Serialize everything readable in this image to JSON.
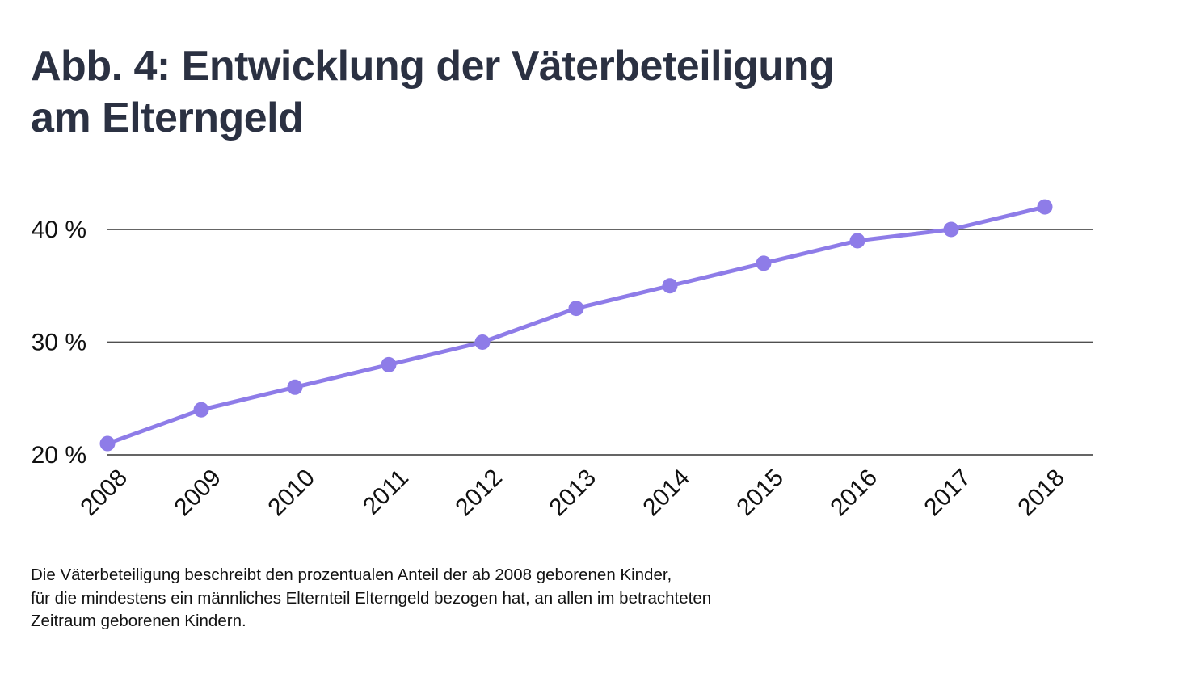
{
  "header": {
    "title_line1": "Abb. 4: Entwicklung der Väterbeteiligung",
    "title_line2": "am Elterngeld",
    "title_color": "#2b3142"
  },
  "chart_data": {
    "type": "line",
    "title": "Abb. 4: Entwicklung der Väterbeteiligung am Elterngeld",
    "x": [
      "2008",
      "2009",
      "2010",
      "2011",
      "2012",
      "2013",
      "2014",
      "2015",
      "2016",
      "2017",
      "2018"
    ],
    "values": [
      21,
      24,
      26,
      28,
      30,
      33,
      35,
      37,
      39,
      40,
      42
    ],
    "unit": "%",
    "ylim": [
      20,
      43
    ],
    "yticks": [
      20,
      30,
      40
    ],
    "ytick_labels": [
      "20 %",
      "30 %",
      "40 %"
    ],
    "grid": true,
    "legend_position": "none",
    "line_color": "#8e7ce8",
    "point_color": "#8e7ce8",
    "grid_color": "#4f4f4f",
    "axis_text_color": "#111111"
  },
  "footnote": {
    "lines": [
      "Die Väterbeteiligung beschreibt den prozentualen Anteil der ab 2008 geborenen Kinder,",
      "für die mindestens ein männliches Elternteil Elterngeld bezogen hat, an allen im betrachteten",
      "Zeitraum geborenen Kindern."
    ]
  }
}
